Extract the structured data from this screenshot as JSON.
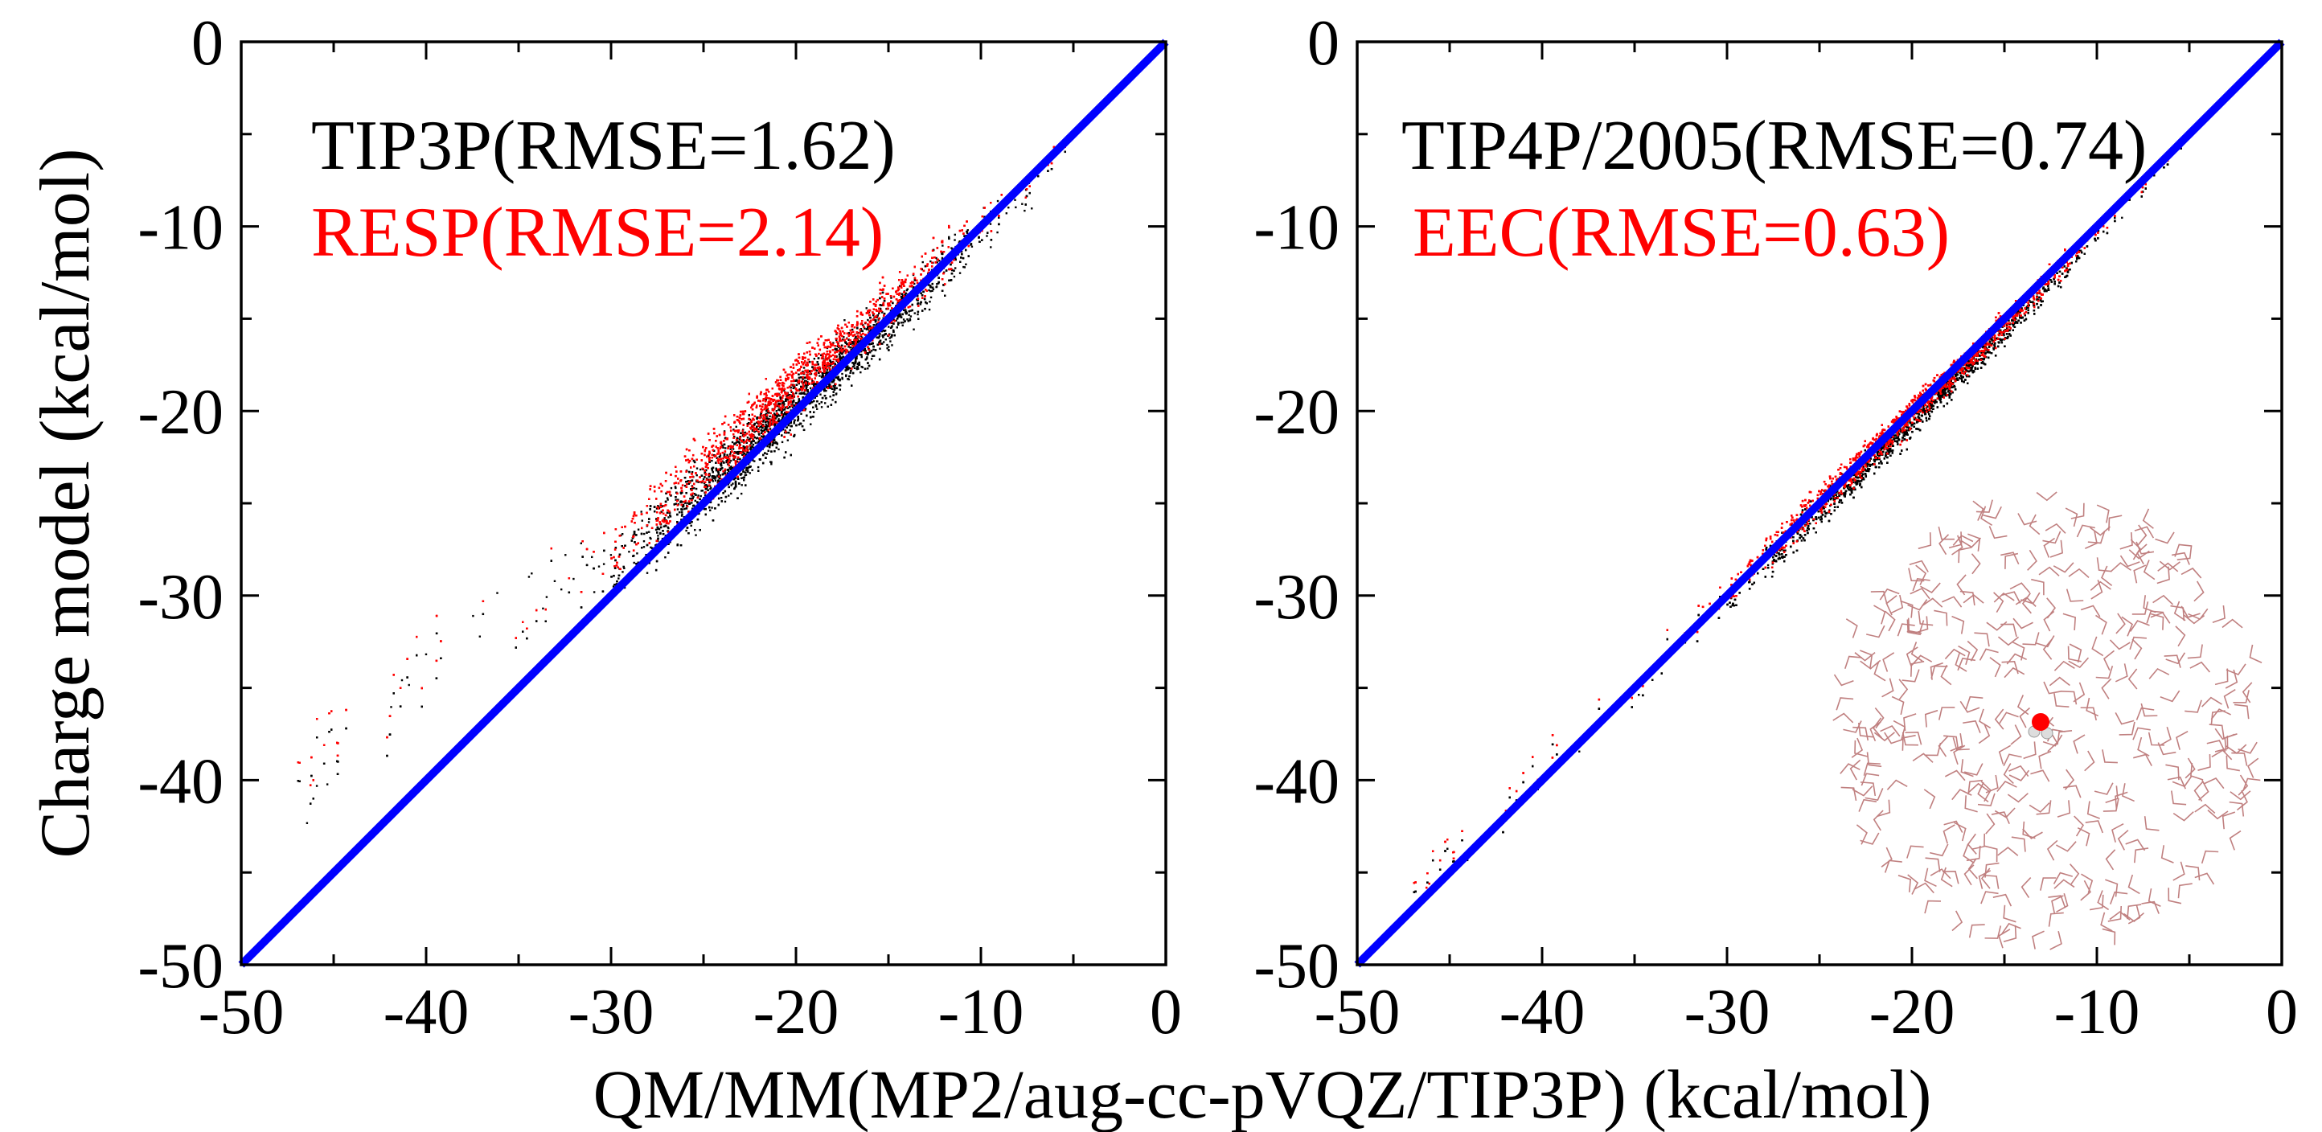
{
  "chart_data": [
    {
      "type": "scatter",
      "xlim": [
        -50,
        0
      ],
      "ylim": [
        -50,
        0
      ],
      "xticks": [
        "-50",
        "-40",
        "-30",
        "-20",
        "-10",
        "0"
      ],
      "yticks": [
        "-50",
        "-40",
        "-30",
        "-20",
        "-10",
        "0"
      ],
      "ylabel": "Charge model (kcal/mol)",
      "grid": false,
      "series": [
        {
          "name": "TIP3P(RMSE=1.62)",
          "color": "#000000",
          "points_trend": [
            [
              -46,
              -40
            ],
            [
              -40,
              -35
            ],
            [
              -35,
              -31
            ],
            [
              -30,
              -28.3
            ],
            [
              -25,
              -24.2
            ],
            [
              -20,
              -19.6
            ],
            [
              -15,
              -15
            ],
            [
              -10,
              -10.3
            ],
            [
              -6,
              -6.5
            ]
          ],
          "spread": 1.0
        },
        {
          "name": "RESP(RMSE=2.14)",
          "color": "#ff0000",
          "points_trend": [
            [
              -46,
              -39
            ],
            [
              -40,
              -34
            ],
            [
              -35,
              -30.5
            ],
            [
              -30,
              -27.3
            ],
            [
              -25,
              -23
            ],
            [
              -20,
              -18.5
            ],
            [
              -15,
              -14.2
            ],
            [
              -10,
              -9.8
            ],
            [
              -6,
              -6.2
            ]
          ],
          "spread": 1.0
        },
        {
          "name": "y = x",
          "color": "#0000ff",
          "points_trend": [
            [
              -50,
              -50
            ],
            [
              0,
              0
            ]
          ]
        }
      ]
    },
    {
      "type": "scatter",
      "xlim": [
        -50,
        0
      ],
      "ylim": [
        -50,
        0
      ],
      "xticks": [
        "-50",
        "-40",
        "-30",
        "-20",
        "-10",
        "0"
      ],
      "yticks": [
        "-50",
        "-40",
        "-30",
        "-20",
        "-10",
        "0"
      ],
      "grid": false,
      "series": [
        {
          "name": "TIP4P/2005(RMSE=0.74)",
          "color": "#000000",
          "points_trend": [
            [
              -46,
              -45.5
            ],
            [
              -40,
              -39.8
            ],
            [
              -35,
              -35
            ],
            [
              -30,
              -30.1
            ],
            [
              -25,
              -25.3
            ],
            [
              -20,
              -20.5
            ],
            [
              -15,
              -15.6
            ],
            [
              -10,
              -10.4
            ],
            [
              -6,
              -6.3
            ]
          ],
          "spread": 0.5
        },
        {
          "name": "EEC(RMSE=0.63)",
          "color": "#ff0000",
          "points_trend": [
            [
              -46,
              -45
            ],
            [
              -40,
              -39.3
            ],
            [
              -35,
              -34.5
            ],
            [
              -30,
              -29.6
            ],
            [
              -25,
              -24.8
            ],
            [
              -20,
              -20
            ],
            [
              -15,
              -15.2
            ],
            [
              -10,
              -10.1
            ],
            [
              -6,
              -6.1
            ]
          ],
          "spread": 0.5
        },
        {
          "name": "y = x",
          "color": "#0000ff",
          "points_trend": [
            [
              -50,
              -50
            ],
            [
              0,
              0
            ]
          ]
        }
      ]
    }
  ],
  "shared_xlabel": "QM/MM(MP2/aug-cc-pVQZ/TIP3P) (kcal/mol)",
  "inset": {
    "icon": "water-cluster-molecular-image",
    "line_color": "#c08080",
    "oxygen_color": "#ff0000"
  }
}
